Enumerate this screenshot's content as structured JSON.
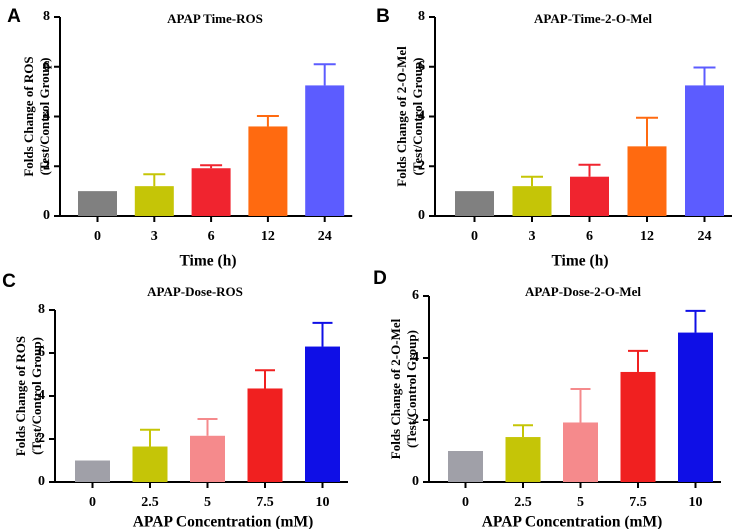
{
  "chart_data": [
    {
      "panel": "A",
      "type": "bar",
      "title": "APAP Time-ROS",
      "xlabel": "Time (h)",
      "ylabel_line1": "Folds Change of ROS",
      "ylabel_line2": "(Test/Control Group)",
      "ylim": [
        0,
        8
      ],
      "yticks": [
        "0",
        "2",
        "4",
        "6",
        "8"
      ],
      "categories": [
        "0",
        "3",
        "6",
        "12",
        "24"
      ],
      "values": [
        1.0,
        1.2,
        1.92,
        3.6,
        5.25
      ],
      "errors": [
        0,
        0.48,
        0.12,
        0.42,
        0.85
      ],
      "colors": [
        "#808080",
        "#c5c507",
        "#f0242f",
        "#ff6a10",
        "#5c5cff"
      ]
    },
    {
      "panel": "B",
      "type": "bar",
      "title": "APAP-Time-2-O-Mel",
      "xlabel": "Time (h)",
      "ylabel_line1": "Folds Change of 2-O-Mel",
      "ylabel_line2": "(Test/Control Group)",
      "ylim": [
        0,
        8
      ],
      "yticks": [
        "0",
        "2",
        "4",
        "6",
        "8"
      ],
      "categories": [
        "0",
        "3",
        "6",
        "12",
        "24"
      ],
      "values": [
        1.0,
        1.2,
        1.58,
        2.8,
        5.25
      ],
      "errors": [
        0,
        0.38,
        0.48,
        1.15,
        0.72
      ],
      "colors": [
        "#808080",
        "#c5c507",
        "#f0242f",
        "#ff6a10",
        "#5c5cff"
      ]
    },
    {
      "panel": "C",
      "type": "bar",
      "title": "APAP-Dose-ROS",
      "xlabel": "APAP Concentration (mM)",
      "ylabel_line1": "Folds Change of ROS",
      "ylabel_line2": "(Test/Control Group)",
      "ylim": [
        0,
        8
      ],
      "yticks": [
        "0",
        "2",
        "4",
        "6",
        "8"
      ],
      "categories": [
        "0",
        "2.5",
        "5",
        "7.5",
        "10"
      ],
      "values": [
        1.0,
        1.65,
        2.15,
        4.35,
        6.3
      ],
      "errors": [
        0,
        0.78,
        0.78,
        0.85,
        1.1
      ],
      "colors": [
        "#a0a0a8",
        "#c5c507",
        "#f58a8c",
        "#f02020",
        "#0f0fe6"
      ]
    },
    {
      "panel": "D",
      "type": "bar",
      "title": "APAP-Dose-2-O-Mel",
      "xlabel": "APAP Concentration (mM)",
      "ylabel_line1": "Folds Change of 2-O-Mel",
      "ylabel_line2": "(Test/Control Group)",
      "ylim": [
        0,
        6
      ],
      "yticks": [
        "0",
        "2",
        "4",
        "6"
      ],
      "categories": [
        "0",
        "2.5",
        "5",
        "7.5",
        "10"
      ],
      "values": [
        1.0,
        1.45,
        1.92,
        3.55,
        4.82
      ],
      "errors": [
        0,
        0.38,
        1.08,
        0.68,
        0.7
      ],
      "colors": [
        "#a0a0a8",
        "#c5c507",
        "#f58a8c",
        "#f02020",
        "#0f0fe6"
      ]
    }
  ]
}
